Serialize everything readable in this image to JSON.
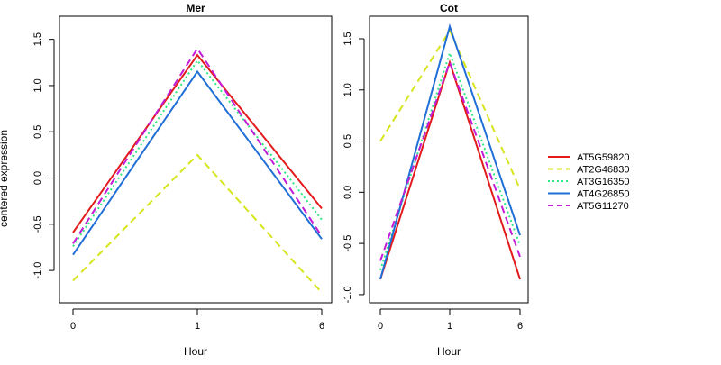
{
  "chart_data": {
    "type": "line",
    "ylabel": "centered expression",
    "legend_position": "right",
    "series_styles": [
      {
        "name": "AT5G59820",
        "color": "#e31a1c",
        "dash": ""
      },
      {
        "name": "AT2G46830",
        "color": "#d6e51c",
        "dash": "8,5"
      },
      {
        "name": "AT3G16350",
        "color": "#2ee882",
        "dash": "2,3"
      },
      {
        "name": "AT4G26850",
        "color": "#1f6fd6",
        "dash": ""
      },
      {
        "name": "AT5G11270",
        "color": "#c21cd6",
        "dash": "8,5"
      }
    ],
    "panels": [
      {
        "title": "Mer",
        "xlabel": "Hour",
        "x": [
          "0",
          "1",
          "6"
        ],
        "ylim": [
          -1.35,
          1.75
        ],
        "yticks": [
          -1.0,
          -0.5,
          0.0,
          0.5,
          1.0,
          1.5
        ],
        "series": [
          {
            "name": "AT5G59820",
            "values": [
              -0.59,
              1.33,
              -0.33
            ]
          },
          {
            "name": "AT2G46830",
            "values": [
              -1.11,
              0.25,
              -1.24
            ]
          },
          {
            "name": "AT3G16350",
            "values": [
              -0.74,
              1.27,
              -0.45
            ]
          },
          {
            "name": "AT4G26850",
            "values": [
              -0.83,
              1.15,
              -0.66
            ]
          },
          {
            "name": "AT5G11270",
            "values": [
              -0.71,
              1.4,
              -0.63
            ]
          }
        ]
      },
      {
        "title": "Cot",
        "xlabel": "Hour",
        "x": [
          "0",
          "1",
          "6"
        ],
        "ylim": [
          -1.08,
          1.72
        ],
        "yticks": [
          -1.0,
          -0.5,
          0.0,
          0.5,
          1.0,
          1.5
        ],
        "series": [
          {
            "name": "AT5G59820",
            "values": [
              -0.85,
              1.27,
              -0.85
            ]
          },
          {
            "name": "AT2G46830",
            "values": [
              0.5,
              1.58,
              0.03
            ]
          },
          {
            "name": "AT3G16350",
            "values": [
              -0.76,
              1.36,
              -0.52
            ]
          },
          {
            "name": "AT4G26850",
            "values": [
              -0.85,
              1.62,
              -0.42
            ]
          },
          {
            "name": "AT5G11270",
            "values": [
              -0.67,
              1.27,
              -0.63
            ]
          }
        ]
      }
    ]
  }
}
